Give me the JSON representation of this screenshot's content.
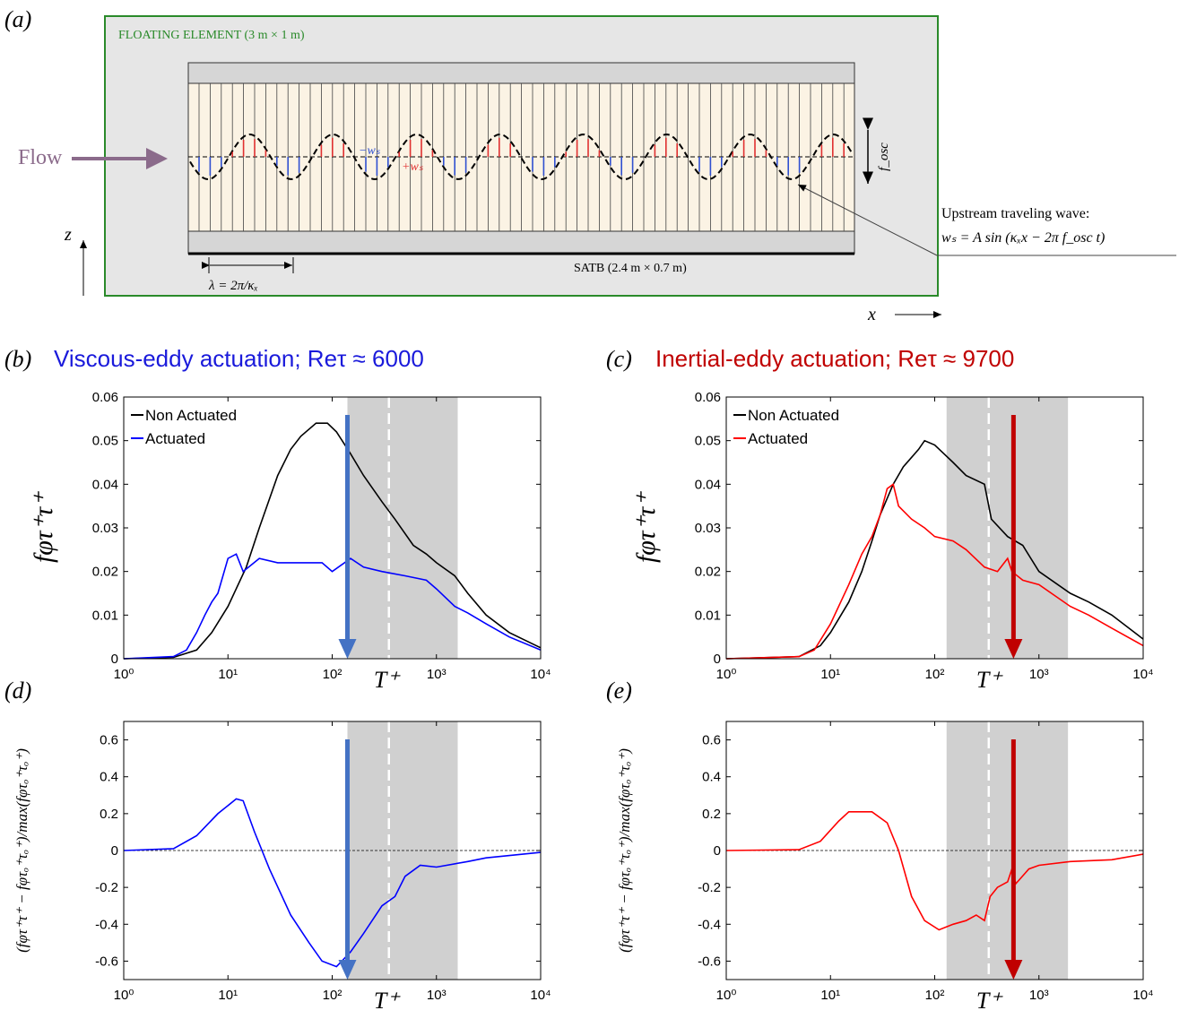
{
  "panel_a": {
    "label": "(a)",
    "floating_element": "FLOATING ELEMENT (3 m × 1 m)",
    "flow": "Flow",
    "satb": "SATB (2.4 m × 0.7 m)",
    "wavelength": "λ = 2π/κₓ",
    "f_osc": "f_osc",
    "minus_ws": "−wₛ",
    "plus_ws": "+wₛ",
    "wave_title": "Upstream traveling wave:",
    "wave_eq": "wₛ = A sin (κₓx − 2π f_osc t)",
    "z_axis": "z",
    "x_axis": "x"
  },
  "chart_data": [
    {
      "type": "line",
      "label": "(b)",
      "title": "Viscous-eddy actuation; Reτ ≈ 6000",
      "title_color": "#1a1adb",
      "xlabel": "T⁺",
      "ylabel": "fφτ⁺τ⁺",
      "xscale": "log",
      "xlim": [
        1,
        10000
      ],
      "xticks": [
        {
          "value": 1,
          "label": "10⁰"
        },
        {
          "value": 10,
          "label": "10¹"
        },
        {
          "value": 100,
          "label": "10²"
        },
        {
          "value": 1000,
          "label": "10³"
        },
        {
          "value": 10000,
          "label": "10⁴"
        }
      ],
      "ylim": [
        0,
        0.06
      ],
      "yticks": [
        0,
        0.01,
        0.02,
        0.03,
        0.04,
        0.05,
        0.06
      ],
      "legend": "upper left",
      "shade": [
        140,
        1600
      ],
      "dashed_line": 350,
      "arrow_x": 140,
      "arrow_color": "#4472c4",
      "series": [
        {
          "name": "Non Actuated",
          "color": "#000000",
          "x": [
            1,
            3,
            5,
            7,
            10,
            15,
            20,
            30,
            40,
            50,
            70,
            90,
            110,
            150,
            200,
            300,
            400,
            600,
            800,
            1000,
            1500,
            2000,
            3000,
            5000,
            10000
          ],
          "values": [
            0,
            0.0003,
            0.002,
            0.006,
            0.012,
            0.021,
            0.03,
            0.042,
            0.048,
            0.051,
            0.054,
            0.054,
            0.052,
            0.047,
            0.042,
            0.036,
            0.032,
            0.026,
            0.024,
            0.022,
            0.019,
            0.015,
            0.01,
            0.006,
            0.0025
          ]
        },
        {
          "name": "Actuated",
          "color": "#0000ff",
          "x": [
            1,
            3,
            4,
            5,
            6,
            7,
            8,
            10,
            12,
            14,
            20,
            30,
            50,
            80,
            100,
            150,
            200,
            300,
            500,
            800,
            1000,
            1500,
            2000,
            3000,
            5000,
            10000
          ],
          "values": [
            0,
            0.0005,
            0.002,
            0.006,
            0.01,
            0.013,
            0.015,
            0.023,
            0.024,
            0.02,
            0.023,
            0.022,
            0.022,
            0.022,
            0.02,
            0.023,
            0.021,
            0.02,
            0.019,
            0.018,
            0.016,
            0.012,
            0.0105,
            0.008,
            0.005,
            0.002
          ]
        }
      ]
    },
    {
      "type": "line",
      "label": "(c)",
      "title": "Inertial-eddy actuation; Reτ ≈ 9700",
      "title_color": "#c00000",
      "xlabel": "T⁺",
      "ylabel": "fφτ⁺τ⁺",
      "xscale": "log",
      "xlim": [
        1,
        10000
      ],
      "xticks": [
        {
          "value": 1,
          "label": "10⁰"
        },
        {
          "value": 10,
          "label": "10¹"
        },
        {
          "value": 100,
          "label": "10²"
        },
        {
          "value": 1000,
          "label": "10³"
        },
        {
          "value": 10000,
          "label": "10⁴"
        }
      ],
      "ylim": [
        0,
        0.06
      ],
      "yticks": [
        0,
        0.01,
        0.02,
        0.03,
        0.04,
        0.05,
        0.06
      ],
      "legend": "upper left",
      "shade": [
        130,
        1900
      ],
      "dashed_line": 330,
      "arrow_x": 570,
      "arrow_color": "#c00000",
      "series": [
        {
          "name": "Non Actuated",
          "color": "#000000",
          "x": [
            1,
            5,
            8,
            10,
            15,
            20,
            25,
            30,
            40,
            50,
            70,
            80,
            100,
            150,
            200,
            300,
            350,
            500,
            700,
            1000,
            2000,
            3000,
            5000,
            10000
          ],
          "values": [
            0,
            0.0005,
            0.003,
            0.006,
            0.013,
            0.02,
            0.027,
            0.033,
            0.04,
            0.044,
            0.048,
            0.05,
            0.049,
            0.045,
            0.042,
            0.04,
            0.032,
            0.028,
            0.026,
            0.02,
            0.015,
            0.013,
            0.01,
            0.0045
          ]
        },
        {
          "name": "Actuated",
          "color": "#ff0000",
          "x": [
            1,
            5,
            7,
            10,
            15,
            20,
            25,
            30,
            35,
            40,
            45,
            60,
            80,
            100,
            150,
            200,
            300,
            400,
            500,
            550,
            700,
            1000,
            2000,
            3000,
            5000,
            10000
          ],
          "values": [
            0,
            0.0005,
            0.002,
            0.008,
            0.017,
            0.024,
            0.028,
            0.033,
            0.039,
            0.04,
            0.035,
            0.032,
            0.03,
            0.028,
            0.027,
            0.025,
            0.021,
            0.02,
            0.023,
            0.02,
            0.018,
            0.017,
            0.012,
            0.01,
            0.007,
            0.003
          ]
        }
      ]
    },
    {
      "type": "line",
      "label": "(d)",
      "xlabel": "T⁺",
      "ylabel": "(fφτ⁺τ⁺ − fφτₒ⁺τₒ⁺)/max(fφτₒ⁺τₒ⁺)",
      "xscale": "log",
      "xlim": [
        1,
        10000
      ],
      "xticks": [
        {
          "value": 1,
          "label": "10⁰"
        },
        {
          "value": 10,
          "label": "10¹"
        },
        {
          "value": 100,
          "label": "10²"
        },
        {
          "value": 1000,
          "label": "10³"
        },
        {
          "value": 10000,
          "label": "10⁴"
        }
      ],
      "ylim": [
        -0.7,
        0.7
      ],
      "yticks": [
        -0.6,
        -0.4,
        -0.2,
        0,
        0.2,
        0.4,
        0.6
      ],
      "shade": [
        140,
        1600
      ],
      "dashed_line": 350,
      "arrow_x": 140,
      "arrow_color": "#4472c4",
      "series": [
        {
          "color": "#0000ff",
          "x": [
            1,
            3,
            5,
            8,
            12,
            14,
            18,
            25,
            40,
            60,
            80,
            110,
            150,
            200,
            300,
            400,
            500,
            700,
            1000,
            2000,
            3000,
            10000
          ],
          "values": [
            0,
            0.01,
            0.08,
            0.2,
            0.28,
            0.27,
            0.1,
            -0.1,
            -0.35,
            -0.5,
            -0.6,
            -0.63,
            -0.55,
            -0.45,
            -0.3,
            -0.25,
            -0.14,
            -0.08,
            -0.09,
            -0.06,
            -0.04,
            -0.01
          ]
        }
      ]
    },
    {
      "type": "line",
      "label": "(e)",
      "xlabel": "T⁺",
      "ylabel": "(fφτ⁺τ⁺ − fφτₒ⁺τₒ⁺)/max(fφτₒ⁺τₒ⁺)",
      "xscale": "log",
      "xlim": [
        1,
        10000
      ],
      "xticks": [
        {
          "value": 1,
          "label": "10⁰"
        },
        {
          "value": 10,
          "label": "10¹"
        },
        {
          "value": 100,
          "label": "10²"
        },
        {
          "value": 1000,
          "label": "10³"
        },
        {
          "value": 10000,
          "label": "10⁴"
        }
      ],
      "ylim": [
        -0.7,
        0.7
      ],
      "yticks": [
        -0.6,
        -0.4,
        -0.2,
        0,
        0.2,
        0.4,
        0.6
      ],
      "shade": [
        130,
        1900
      ],
      "dashed_line": 330,
      "arrow_x": 570,
      "arrow_color": "#c00000",
      "series": [
        {
          "color": "#ff0000",
          "x": [
            1,
            5,
            8,
            12,
            15,
            25,
            35,
            45,
            60,
            80,
            110,
            150,
            200,
            250,
            300,
            340,
            400,
            500,
            550,
            600,
            800,
            1000,
            2000,
            5000,
            10000
          ],
          "values": [
            0,
            0.005,
            0.05,
            0.16,
            0.21,
            0.21,
            0.15,
            0,
            -0.25,
            -0.38,
            -0.43,
            -0.4,
            -0.38,
            -0.35,
            -0.38,
            -0.25,
            -0.2,
            -0.17,
            -0.1,
            -0.18,
            -0.1,
            -0.08,
            -0.06,
            -0.05,
            -0.02
          ]
        }
      ]
    }
  ]
}
